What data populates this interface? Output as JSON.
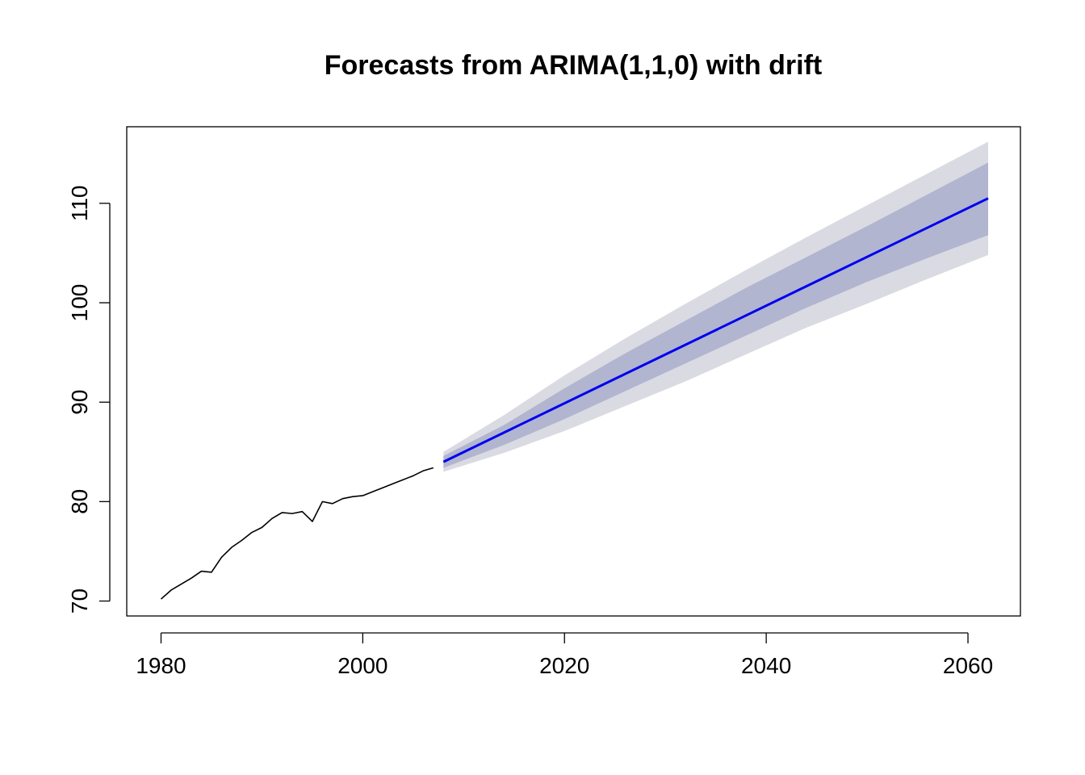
{
  "chart_data": {
    "type": "line",
    "title": "Forecasts from ARIMA(1,1,0) with drift",
    "xlabel": "",
    "ylabel": "",
    "xlim": [
      1976.6,
      2065.2
    ],
    "ylim": [
      68.5,
      117.7
    ],
    "x_ticks": [
      1980,
      2000,
      2020,
      2040,
      2060
    ],
    "x_tick_labels": [
      "1980",
      "2000",
      "2020",
      "2040",
      "2060"
    ],
    "y_ticks": [
      70,
      80,
      90,
      100,
      110
    ],
    "y_tick_labels": [
      "70",
      "80",
      "90",
      "100",
      "110"
    ],
    "grid": false,
    "series": [
      {
        "role": "observed",
        "color": "#000000",
        "x": [
          1980,
          1981,
          1982,
          1983,
          1984,
          1985,
          1986,
          1987,
          1988,
          1989,
          1990,
          1991,
          1992,
          1993,
          1994,
          1995,
          1996,
          1997,
          1998,
          1999,
          2000,
          2001,
          2002,
          2003,
          2004,
          2005,
          2006,
          2007
        ],
        "y": [
          70.2,
          71.1,
          71.7,
          72.3,
          73.0,
          72.9,
          74.4,
          75.4,
          76.1,
          76.9,
          77.4,
          78.3,
          78.9,
          78.8,
          79.0,
          78.0,
          80.0,
          79.8,
          80.3,
          80.5,
          80.6,
          81.0,
          81.4,
          81.8,
          82.2,
          82.6,
          83.1,
          83.4
        ]
      },
      {
        "role": "forecast",
        "color": "#0000ee",
        "x": [
          2008,
          2062
        ],
        "y": [
          84.0,
          110.5
        ]
      }
    ],
    "intervals": [
      {
        "level": "95%",
        "color": "#dadae2",
        "x": [
          2008,
          2014,
          2020,
          2026,
          2032,
          2038,
          2044,
          2050,
          2056,
          2062
        ],
        "lower": [
          83.0,
          84.9,
          87.1,
          89.6,
          92.1,
          94.8,
          97.5,
          99.9,
          102.4,
          104.8
        ],
        "upper": [
          85.0,
          88.7,
          92.7,
          96.4,
          99.9,
          103.3,
          106.6,
          109.8,
          113.0,
          116.2
        ]
      },
      {
        "level": "80%",
        "color": "#b1b5cf",
        "x": [
          2008,
          2014,
          2020,
          2026,
          2032,
          2038,
          2044,
          2050,
          2056,
          2062
        ],
        "lower": [
          83.4,
          85.7,
          88.3,
          91.1,
          93.9,
          96.7,
          99.5,
          102.1,
          104.5,
          106.8
        ],
        "upper": [
          84.6,
          87.7,
          91.4,
          94.9,
          98.2,
          101.5,
          104.6,
          107.7,
          110.9,
          114.1
        ]
      }
    ]
  }
}
